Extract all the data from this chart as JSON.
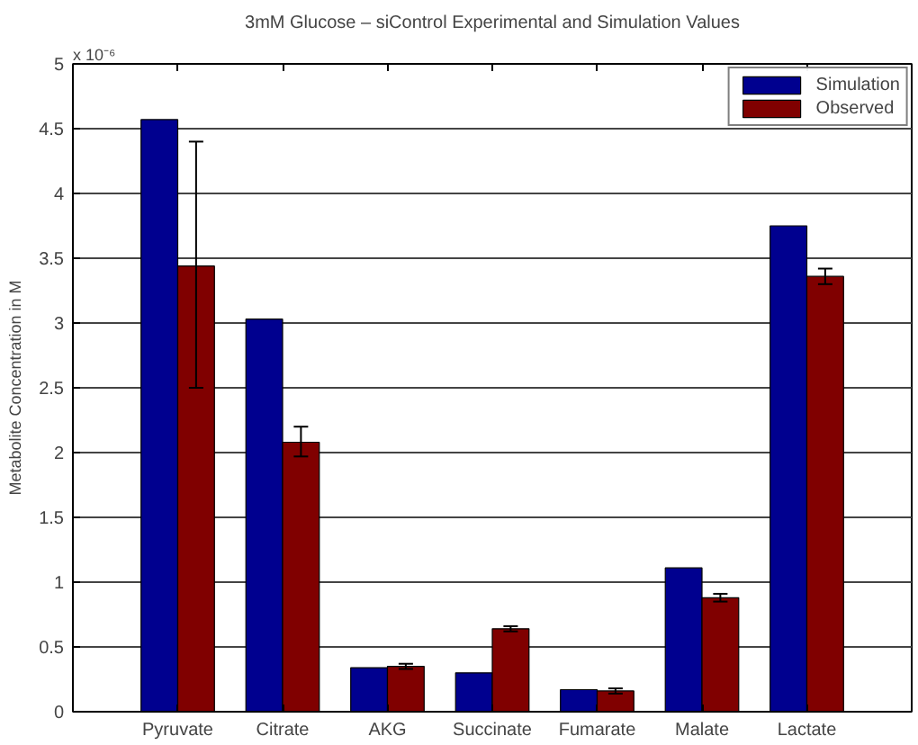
{
  "chart_data": {
    "type": "bar",
    "title": "3mM Glucose – siControl Experimental and Simulation Values",
    "ylabel": "Metabolite Concentration in M",
    "annotations": [
      "x 10⁻⁶"
    ],
    "categories": [
      "Pyruvate",
      "Citrate",
      "AKG",
      "Succinate",
      "Fumarate",
      "Malate",
      "Lactate"
    ],
    "series": [
      {
        "name": "Simulation",
        "color": "#00008f",
        "values": [
          4.57,
          3.03,
          0.34,
          0.3,
          0.17,
          1.11,
          3.75
        ]
      },
      {
        "name": "Observed",
        "color": "#800000",
        "values": [
          3.44,
          2.08,
          0.35,
          0.64,
          0.16,
          0.88,
          3.36
        ],
        "errors": [
          [
            2.5,
            4.4
          ],
          [
            1.97,
            2.2
          ],
          0.02,
          0.02,
          0.02,
          0.03,
          0.06
        ]
      }
    ],
    "ylim": [
      0,
      5
    ],
    "yticks": [
      0,
      0.5,
      1,
      1.5,
      2,
      2.5,
      3,
      3.5,
      4,
      4.5,
      5
    ],
    "grid": "y",
    "legend": "top right"
  }
}
